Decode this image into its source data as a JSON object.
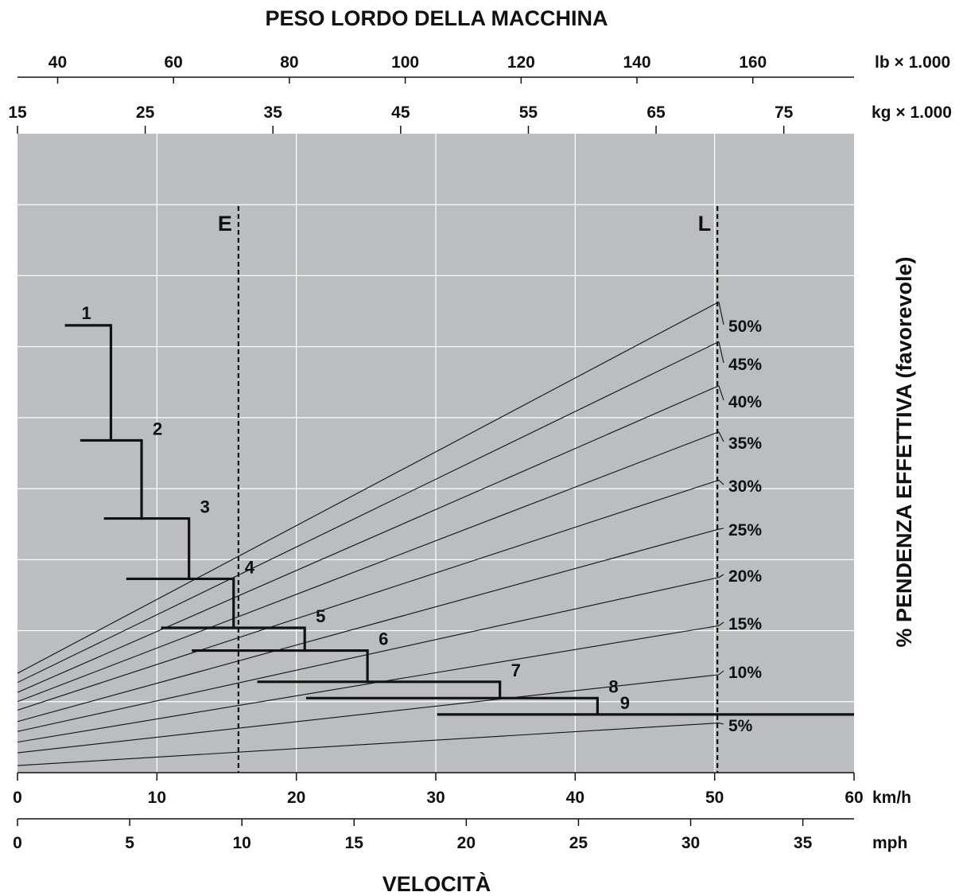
{
  "chart_data": {
    "type": "line",
    "title": "PESO LORDO DELLA MACCHINA",
    "xlabel": "VELOCITÀ",
    "ylabel": "% PENDENZA EFFETTIVA (favorevole)",
    "x_axis": {
      "unit": "km/h",
      "range": [
        0,
        60
      ],
      "ticks": [
        "0",
        "10",
        "20",
        "30",
        "40",
        "50",
        "60"
      ]
    },
    "x_axis_secondary": {
      "unit": "mph",
      "range": [
        0,
        37.3
      ],
      "ticks": [
        "0",
        "5",
        "10",
        "15",
        "20",
        "25",
        "30",
        "35"
      ]
    },
    "weight_axis_kg": {
      "unit": "kg × 1.000",
      "range": [
        15,
        80.5
      ],
      "ticks": [
        "15",
        "25",
        "35",
        "45",
        "55",
        "65",
        "75"
      ]
    },
    "weight_axis_lb": {
      "unit": "lb × 1.000",
      "ticks": [
        "40",
        "60",
        "80",
        "100",
        "120",
        "140",
        "160"
      ]
    },
    "y_axis": {
      "range": [
        0,
        9
      ],
      "ticks_shown": false
    },
    "grid": true,
    "reference_lines": [
      {
        "label": "E",
        "kg": 32.3
      },
      {
        "label": "L",
        "kg": 69.8
      }
    ],
    "grade_lines": [
      {
        "label": "5%",
        "y_at_0": 0.1,
        "y_at_end": 0.7
      },
      {
        "label": "10%",
        "y_at_0": 0.28,
        "y_at_end": 1.38
      },
      {
        "label": "15%",
        "y_at_0": 0.43,
        "y_at_end": 2.07
      },
      {
        "label": "20%",
        "y_at_0": 0.58,
        "y_at_end": 2.75
      },
      {
        "label": "25%",
        "y_at_0": 0.72,
        "y_at_end": 3.43
      },
      {
        "label": "30%",
        "y_at_0": 0.88,
        "y_at_end": 4.12
      },
      {
        "label": "35%",
        "y_at_0": 1.0,
        "y_at_end": 4.8
      },
      {
        "label": "40%",
        "y_at_0": 1.13,
        "y_at_end": 5.45
      },
      {
        "label": "45%",
        "y_at_0": 1.27,
        "y_at_end": 6.07
      },
      {
        "label": "50%",
        "y_at_0": 1.4,
        "y_at_end": 6.63
      }
    ],
    "gear_steps": [
      {
        "gear": "1",
        "x_start": 3.4,
        "x_end": 6.7,
        "y": 6.3
      },
      {
        "gear": "2",
        "x_start": 4.5,
        "x_end": 8.9,
        "y": 4.68
      },
      {
        "gear": "3",
        "x_start": 6.2,
        "x_end": 12.3,
        "y": 3.58
      },
      {
        "gear": "4",
        "x_start": 7.8,
        "x_end": 15.5,
        "y": 2.73
      },
      {
        "gear": "5",
        "x_start": 10.3,
        "x_end": 20.6,
        "y": 2.04
      },
      {
        "gear": "6",
        "x_start": 12.5,
        "x_end": 25.1,
        "y": 1.72
      },
      {
        "gear": "7",
        "x_start": 17.2,
        "x_end": 34.6,
        "y": 1.28
      },
      {
        "gear": "8",
        "x_start": 20.7,
        "x_end": 41.6,
        "y": 1.05
      },
      {
        "gear": "9",
        "x_start": 30.1,
        "x_end": 60.0,
        "y": 0.82
      }
    ]
  }
}
